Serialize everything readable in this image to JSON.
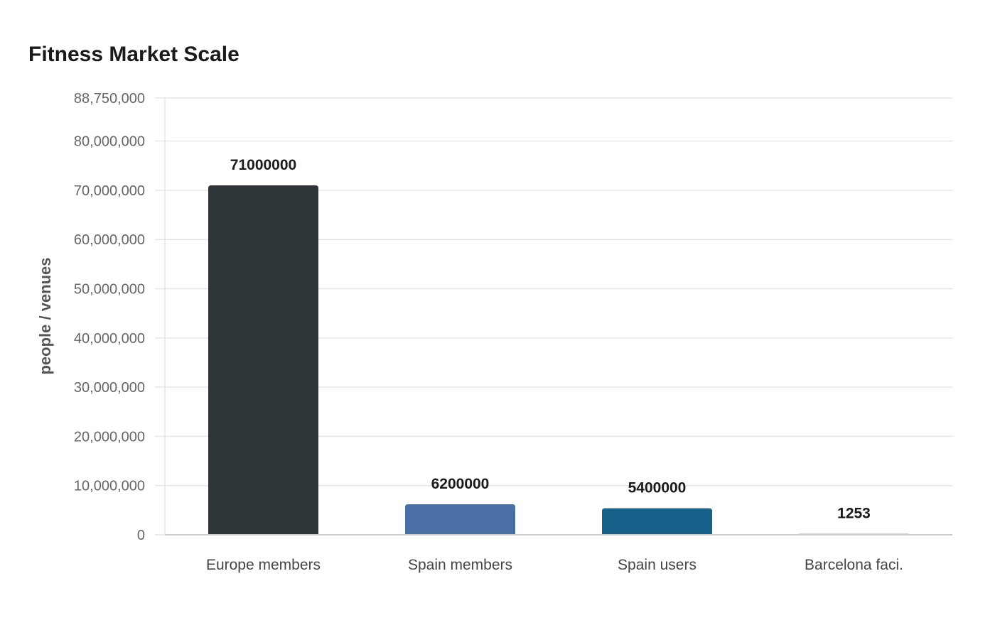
{
  "chart_data": {
    "type": "bar",
    "title": "Fitness Market Scale",
    "xlabel": "",
    "ylabel": "people / venues",
    "categories": [
      "Europe members",
      "Spain members",
      "Spain users",
      "Barcelona faci."
    ],
    "values": [
      71000000,
      6200000,
      5400000,
      1253
    ],
    "value_labels": [
      "71000000",
      "6200000",
      "5400000",
      "1253"
    ],
    "bar_colors": [
      "#2e3538",
      "#4a6fa5",
      "#17608a",
      "#a9a9a9"
    ],
    "ylim": [
      0,
      88750000
    ],
    "yticks": [
      0,
      10000000,
      20000000,
      30000000,
      40000000,
      50000000,
      60000000,
      70000000,
      80000000,
      88750000
    ],
    "ytick_labels": [
      "0",
      "10,000,000",
      "20,000,000",
      "30,000,000",
      "40,000,000",
      "50,000,000",
      "60,000,000",
      "70,000,000",
      "80,000,000",
      "88,750,000"
    ],
    "grid": true,
    "legend": "none"
  }
}
